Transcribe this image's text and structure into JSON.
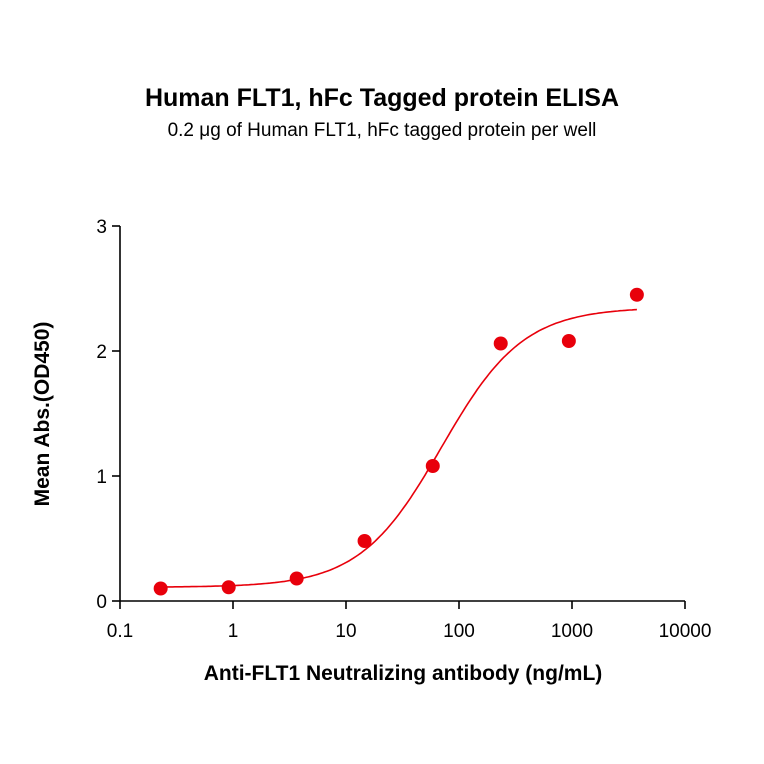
{
  "chart_data": {
    "type": "scatter",
    "title": "Human FLT1, hFc Tagged protein ELISA",
    "subtitle": "0.2 μg of Human FLT1, hFc tagged protein per well",
    "xlabel": "Anti-FLT1 Neutralizing antibody (ng/mL)",
    "ylabel": "Mean Abs.(OD450)",
    "xscale": "log",
    "xlim": [
      0.1,
      10000
    ],
    "ylim": [
      0,
      3
    ],
    "xticks": [
      "0.1",
      "1",
      "10",
      "100",
      "1000",
      "10000"
    ],
    "yticks": [
      "0",
      "1",
      "2",
      "3"
    ],
    "grid": false,
    "color": "#e8000b",
    "points": {
      "x": [
        0.229,
        0.916,
        3.66,
        14.6,
        58.6,
        234,
        938,
        3750
      ],
      "y": [
        0.1,
        0.11,
        0.18,
        0.48,
        1.08,
        2.06,
        2.08,
        2.45
      ]
    },
    "fit": {
      "model": "4PL",
      "bottom": 0.11,
      "top": 2.35,
      "ec50": 70,
      "hill": 1.2
    }
  }
}
